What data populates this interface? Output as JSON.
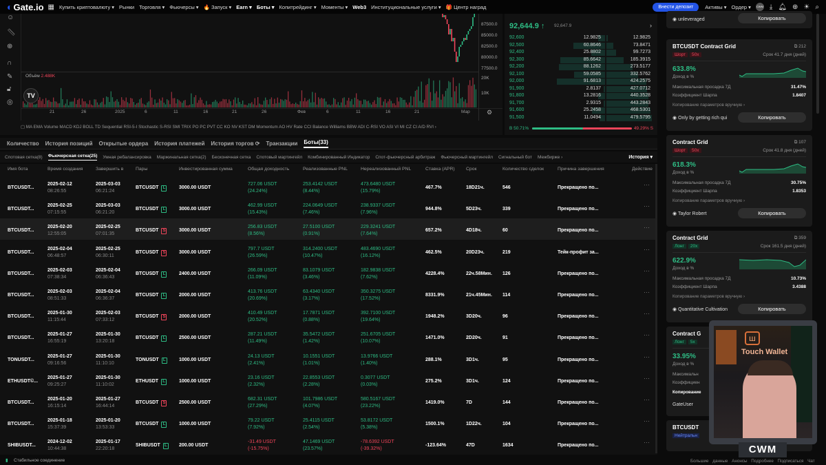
{
  "topnav": {
    "logo": "Gate.io",
    "items": [
      "Купить криптовалюту ▾",
      "Рынки",
      "Торговля ▾",
      "Фьючерсы ▾",
      "🔥 Запуск ▾",
      "Earn ▾",
      "Боты ▾",
      "Копитрейдинг ▾",
      "Моменты ▾",
      "Web3",
      "Институциональные услуги ▾",
      "🎁 Центр наград"
    ],
    "deposit": "Внести депозит",
    "assets": "Активы ▾",
    "order": "Ордер ▾",
    "avatar": "CWM"
  },
  "chart": {
    "price_axis": [
      "87500.0",
      "85000.0",
      "82500.0",
      "80000.0",
      "77500.0"
    ],
    "volume_label": "Объём",
    "volume_value": "2.488K",
    "volume_axis": [
      "20K",
      "10K"
    ],
    "dates": [
      "21",
      "26",
      "2025",
      "6",
      "11",
      "16",
      "21",
      "26",
      "Фев",
      "6",
      "11",
      "16",
      "21",
      "Мар"
    ],
    "indicators": "MA EMA Volume MACD KDJ BOLL TD Sequential RSI-5-I Stochastic S-RSI SMI TRIX PO PC PVT CC KO NV KST DM Momentum AO HV Rate CCI Balance Williams BBW ADI C-RSI VO ASI VI MI CZ CI A/D RVI ›",
    "colors": {
      "up": "#2ebd85",
      "down": "#f0455a"
    }
  },
  "orderbook": {
    "last_price": "92,644.9 ↑",
    "mark_price": "92,647.9",
    "rows": [
      [
        "92,600",
        "12.9825",
        "12.9825"
      ],
      [
        "92,500",
        "60.8646",
        "73.8471"
      ],
      [
        "92,400",
        "25.8802",
        "99.7273"
      ],
      [
        "92,300",
        "85.6642",
        "185.3915"
      ],
      [
        "92,200",
        "88.1262",
        "273.5177"
      ],
      [
        "92,100",
        "59.0585",
        "332.5762"
      ],
      [
        "92,000",
        "91.6813",
        "424.2575"
      ],
      [
        "91,900",
        "2.8137",
        "427.0712"
      ],
      [
        "91,800",
        "13.2816",
        "440.3528"
      ],
      [
        "91,700",
        "2.9315",
        "443.2843"
      ],
      [
        "91,600",
        "25.2458",
        "468.5301"
      ],
      [
        "91,500",
        "11.0494",
        "479.5795"
      ]
    ],
    "buy_ratio": "B 50.71%",
    "sell_ratio": "49.29% S",
    "buy_pct": 50.71
  },
  "tabs": [
    "Количество",
    "История позиций",
    "Открытые ордера",
    "История платежей",
    "История торгов ⟳",
    "Транзакции",
    "Боты(33)"
  ],
  "subtabs": [
    "Спотовая сетка(8)",
    "Фьючерсная сетка(25)",
    "Умная ребалансировка",
    "Маржинальная сетка(2)",
    "Бесконечная сетка",
    "Спотовый мартингейл",
    "Комбинированный Индикатор",
    "Спот-фьючерсный арбитраж",
    "Фьючерсный мартингейл",
    "Сигнальный бот",
    "Межбирже ›"
  ],
  "history": "История ▾",
  "columns": [
    "Имя бота",
    "Время создания",
    "Завершить в",
    "Пары",
    "Инвестированная сумма",
    "Общая доходность",
    "Реализованные PNL",
    "Нереализованный PNL",
    "Ставка (APR)",
    "Срок",
    "Количество сделок",
    "Причина завершения",
    "Действие"
  ],
  "rows": [
    [
      "BTCUSDT...",
      "2025-02-12",
      "08:26:55",
      "2025-03-03",
      "06:21:24",
      "BTCUSDT",
      "L",
      "3000.00 USDT",
      "727.06 USDT",
      "(24.24%)",
      "253.4142 USDT",
      "(8.44%)",
      "473.6480 USDT",
      "(15.79%)",
      "467.7%",
      "18D21ч.",
      "546",
      "Прекращено по..."
    ],
    [
      "BTCUSDT...",
      "2025-02-25",
      "07:15:55",
      "2025-03-03",
      "06:21:20",
      "BTCUSDT",
      "L",
      "3000.00 USDT",
      "462.99 USDT",
      "(15.43%)",
      "224.0649 USDT",
      "(7.46%)",
      "238.9337 USDT",
      "(7.96%)",
      "944.8%",
      "5D23ч.",
      "339",
      "Прекращено по..."
    ],
    [
      "BTCUSDT...",
      "2025-02-20",
      "12:55:05",
      "2025-02-25",
      "07:01:35",
      "BTCUSDT",
      "S",
      "3000.00 USDT",
      "256.83 USDT",
      "(8.56%)",
      "27.5100 USDT",
      "(0.91%)",
      "229.3241 USDT",
      "(7.64%)",
      "657.2%",
      "4D18ч.",
      "60",
      "Прекращено по..."
    ],
    [
      "BTCUSDT...",
      "2025-02-04",
      "06:48:57",
      "2025-02-25",
      "06:30:11",
      "BTCUSDT",
      "S",
      "3000.00 USDT",
      "797.7 USDT",
      "(26.59%)",
      "314.2400 USDT",
      "(10.47%)",
      "483.4690 USDT",
      "(16.12%)",
      "462.5%",
      "20D23ч.",
      "219",
      "Тейк-профит за..."
    ],
    [
      "BTCUSDT...",
      "2025-02-03",
      "07:38:34",
      "2025-02-04",
      "06:36:43",
      "BTCUSDT",
      "L",
      "2400.00 USDT",
      "266.09 USDT",
      "(11.09%)",
      "83.1079 USDT",
      "(3.46%)",
      "182.9838 USDT",
      "(7.62%)",
      "4228.4%",
      "22ч.58Мин.",
      "126",
      "Прекращено по..."
    ],
    [
      "BTCUSDT...",
      "2025-02-03",
      "08:51:33",
      "2025-02-04",
      "06:36:37",
      "BTCUSDT",
      "L",
      "2000.00 USDT",
      "413.76 USDT",
      "(20.69%)",
      "63.4340 USDT",
      "(3.17%)",
      "350.3275 USDT",
      "(17.52%)",
      "8331.9%",
      "21ч.45Мин.",
      "114",
      "Прекращено по..."
    ],
    [
      "BTCUSDT...",
      "2025-01-30",
      "11:15:44",
      "2025-02-03",
      "07:33:12",
      "BTCUSDT",
      "S",
      "2000.00 USDT",
      "410.49 USDT",
      "(20.52%)",
      "17.7871 USDT",
      "(0.88%)",
      "392.7100 USDT",
      "(19.64%)",
      "1948.2%",
      "3D20ч.",
      "96",
      "Прекращено по..."
    ],
    [
      "BTCUSDT...",
      "2025-01-27",
      "16:55:19",
      "2025-01-30",
      "13:20:18",
      "BTCUSDT",
      "L",
      "2500.00 USDT",
      "287.21 USDT",
      "(11.49%)",
      "35.5472 USDT",
      "(1.42%)",
      "251.6705 USDT",
      "(10.07%)",
      "1471.0%",
      "2D20ч.",
      "91",
      "Прекращено по..."
    ],
    [
      "TONUSDT...",
      "2025-01-27",
      "09:16:56",
      "2025-01-30",
      "11:10:10",
      "TONUSDT",
      "L",
      "1000.00 USDT",
      "24.13 USDT",
      "(2.41%)",
      "10.1551 USDT",
      "(1.01%)",
      "13.9766 USDT",
      "(1.40%)",
      "288.1%",
      "3D1ч.",
      "95",
      "Прекращено по..."
    ],
    [
      "ETHUSDT©...",
      "2025-01-27",
      "09:25:27",
      "2025-01-30",
      "11:10:02",
      "ETHUSDT",
      "L",
      "1000.00 USDT",
      "23.16 USDT",
      "(2.32%)",
      "22.8553 USDT",
      "(2.28%)",
      "0.3077 USDT",
      "(0.03%)",
      "275.2%",
      "3D1ч.",
      "124",
      "Прекращено по..."
    ],
    [
      "BTCUSDT...",
      "2025-01-20",
      "16:15:14",
      "2025-01-27",
      "16:44:14",
      "BTCUSDT",
      "S",
      "2500.00 USDT",
      "682.31 USDT",
      "(27.29%)",
      "101.7986 USDT",
      "(4.07%)",
      "580.5167 USDT",
      "(23.22%)",
      "1419.0%",
      "7D",
      "144",
      "Прекращено по..."
    ],
    [
      "BTCUSDT...",
      "2025-01-18",
      "15:37:39",
      "2025-01-20",
      "13:53:33",
      "BTCUSDT",
      "L",
      "1000.00 USDT",
      "79.22 USDT",
      "(7.92%)",
      "25.4115 USDT",
      "(2.54%)",
      "53.8172 USDT",
      "(5.38%)",
      "1500.1%",
      "1D22ч.",
      "104",
      "Прекращено по..."
    ],
    [
      "SHIBUSDT...",
      "2024-12-02",
      "10:44:38",
      "2025-01-17",
      "22:20:18",
      "SHIBUSDT",
      "L",
      "200.00 USDT",
      "-31.49 USDT",
      "(-15.75%)",
      "47.1469 USDT",
      "(23.57%)",
      "-78.6392 USDT",
      "(-39.32%)",
      "-123.64%",
      "47D",
      "1634",
      "Прекращено по..."
    ]
  ],
  "status": "Стабильное соединение",
  "cards_labels": {
    "income": "Доход в %",
    "drawdown": "Максимальная просадка 7Д",
    "sharpe": "Коэффициент Шарпа",
    "manual": "Копирование параметров вручную ›",
    "copy": "Копировать"
  },
  "card0": {
    "user": "unleveraged"
  },
  "cards": [
    {
      "title": "BTCUSDT Contract Grid",
      "count": "⧉ 212",
      "side": "Шорт",
      "lev": "50x",
      "term": "Срок 41.7 дня (дней)",
      "pct": "633.8%",
      "dd": "31.47%",
      "sharpe": "1.8407",
      "user": "Only by getting rich qui"
    },
    {
      "title": "Contract Grid",
      "count": "⧉ 107",
      "side": "Шорт",
      "lev": "50x",
      "term": "Срок 41.8 дня (дней)",
      "pct": "618.3%",
      "dd": "30.75%",
      "sharpe": "1.8353",
      "user": "Taylor Robert"
    },
    {
      "title": "Contract Grid",
      "count": "⧉ 359",
      "side": "Лонг",
      "lev": "20x",
      "term": "Срок 161.5 дня (дней)",
      "pct": "622.9%",
      "dd": "10.73%",
      "sharpe": "3.4388",
      "user": "Quantitative Cultivation"
    },
    {
      "title": "Contract G",
      "side": "Лонг",
      "lev": "5x",
      "pct": "33.95%",
      "dd_label": "Максимальн",
      "sharpe_label": "Коэффициен",
      "manual_label": "Копирование",
      "user": "GateUser"
    }
  ],
  "card_last": {
    "title": "BTCUSDT",
    "badge": "Нейтральн"
  },
  "webcam": {
    "logo": "Touch Wallet",
    "brand": "CWM"
  },
  "footer_links": "Большие данные  Анонсы  Подробнее  Подписаться  Чат"
}
